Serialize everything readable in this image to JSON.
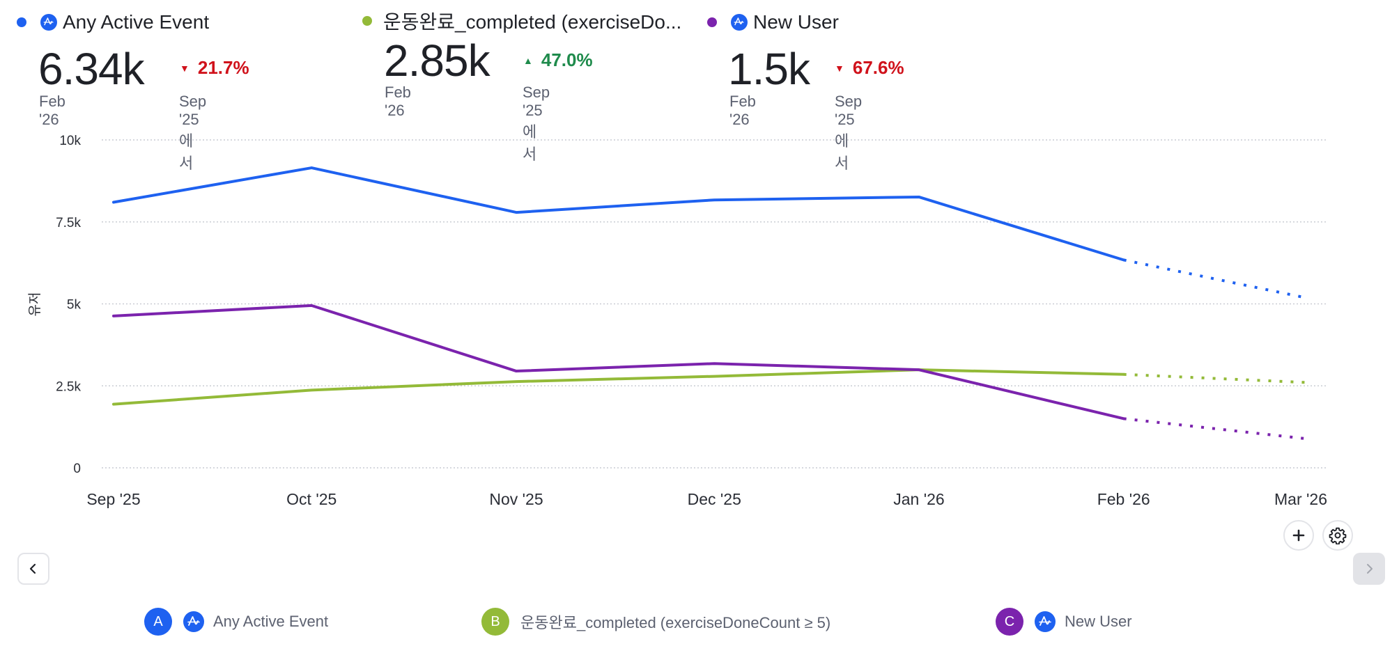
{
  "kpis": [
    {
      "title": "Any Active Event",
      "color": "#1e61f0",
      "has_amp_icon": true,
      "value": "6.34k",
      "date": "Feb '26",
      "delta": "21.7%",
      "direction": "down",
      "from": "Sep '25에서"
    },
    {
      "title": "운동완료_completed (exerciseDo...",
      "color": "#93ba38",
      "has_amp_icon": false,
      "value": "2.85k",
      "date": "Feb '26",
      "delta": "47.0%",
      "direction": "up",
      "from": "Sep '25에서"
    },
    {
      "title": "New User",
      "color": "#7b23ad",
      "has_amp_icon": true,
      "value": "1.5k",
      "date": "Feb '26",
      "delta": "67.6%",
      "direction": "down",
      "from": "Sep '25에서"
    }
  ],
  "controls": {
    "add_icon": "plus-icon",
    "settings_icon": "gear-icon",
    "prev_icon": "chevron-left-icon",
    "next_icon": "chevron-right-icon"
  },
  "legend": [
    {
      "badge": "A",
      "label": "Any Active Event",
      "color": "#1e61f0",
      "has_amp_icon": true
    },
    {
      "badge": "B",
      "label": "운동완료_completed (exerciseDoneCount ≥ 5)",
      "color": "#93ba38",
      "has_amp_icon": false
    },
    {
      "badge": "C",
      "label": "New User",
      "color": "#7b23ad",
      "has_amp_icon": true
    }
  ],
  "chart_data": {
    "type": "line",
    "title": "",
    "xlabel": "",
    "ylabel": "유저",
    "x": [
      "Sep '25",
      "Oct '25",
      "Nov '25",
      "Dec '25",
      "Jan '26",
      "Feb '26",
      "Mar '26"
    ],
    "x_days": [
      0,
      30,
      61,
      91,
      122,
      153,
      181
    ],
    "ylim": [
      0,
      10000
    ],
    "yticks": [
      0,
      2500,
      5000,
      7500,
      10000
    ],
    "ytick_labels": [
      "0",
      "2.5k",
      "5k",
      "7.5k",
      "10k"
    ],
    "grid": true,
    "incomplete_from_index": 5,
    "series": [
      {
        "name": "Any Active Event",
        "color": "#1e61f0",
        "values": [
          8100,
          9150,
          7790,
          8170,
          8260,
          6340,
          5170
        ]
      },
      {
        "name": "운동완료_completed (exerciseDoneCount ≥ 5)",
        "color": "#93ba38",
        "values": [
          1940,
          2370,
          2630,
          2790,
          2990,
          2850,
          2600
        ]
      },
      {
        "name": "New User",
        "color": "#7b23ad",
        "values": [
          4630,
          4950,
          2950,
          3180,
          2990,
          1500,
          880
        ]
      }
    ]
  }
}
